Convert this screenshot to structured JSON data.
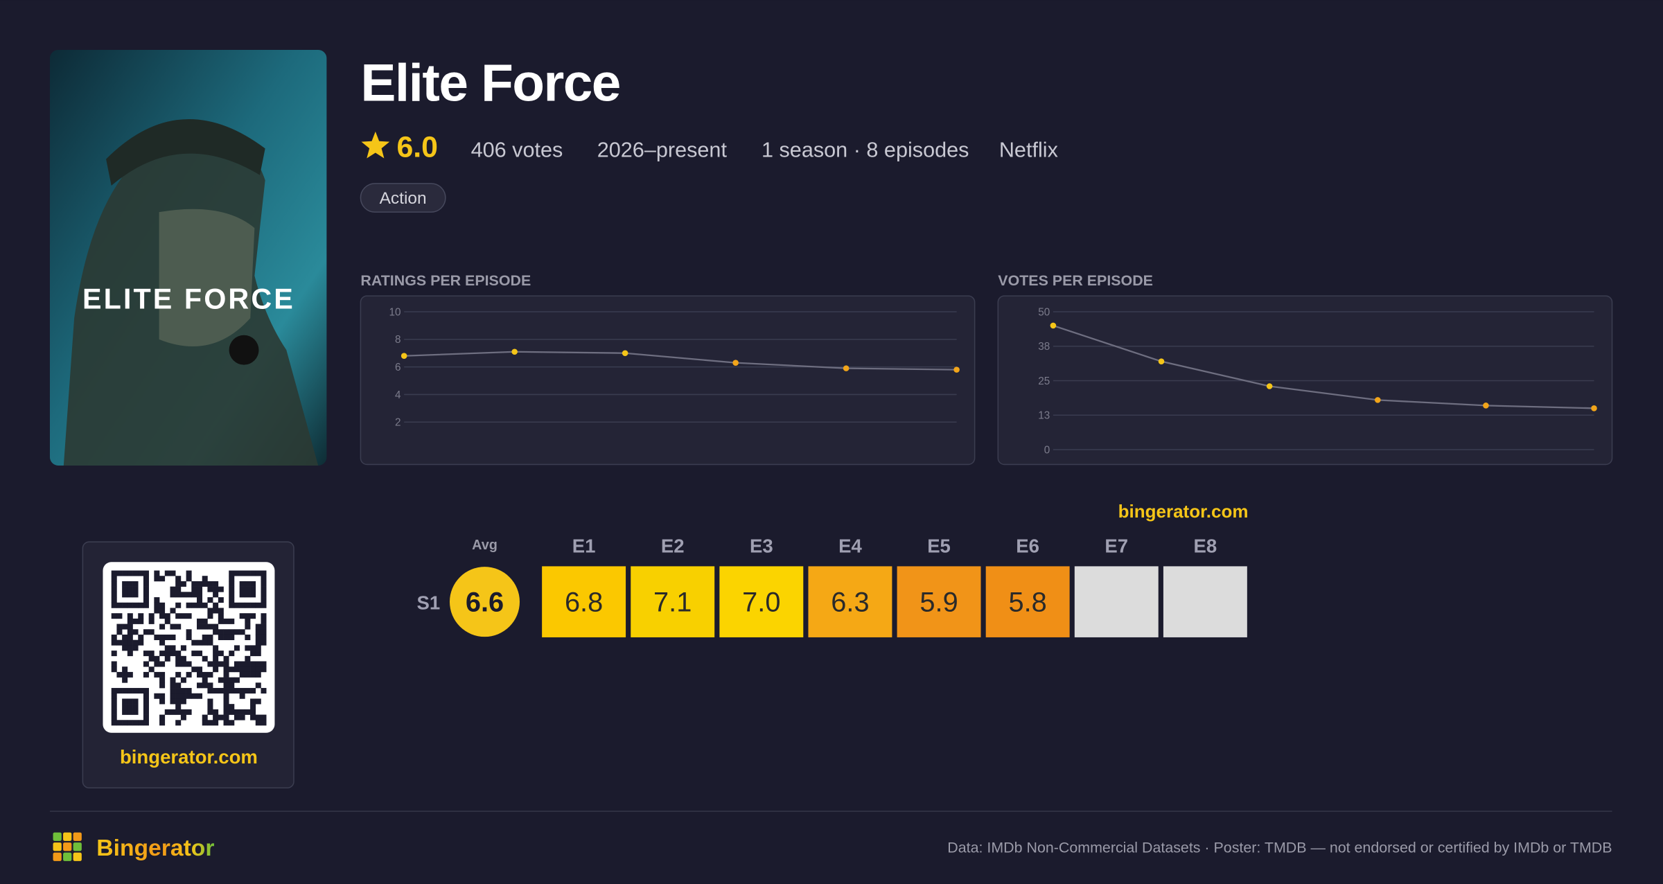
{
  "header": {
    "title": "Elite Force",
    "rating": "6.0",
    "votes": "406 votes",
    "years": "2026–present",
    "seasons": "1 season · 8 episodes",
    "network": "Netflix",
    "genres": [
      "Action"
    ]
  },
  "poster": {
    "title": "ELITE FORCE"
  },
  "qr": {
    "caption": "bingerator.com"
  },
  "chart_data": [
    {
      "type": "line",
      "title": "RATINGS PER EPISODE",
      "values": [
        6.8,
        7.1,
        7.0,
        6.3,
        5.9,
        5.8
      ],
      "marker_colors": [
        "#f5c518",
        "#f5c518",
        "#f5c518",
        "#f2a51a",
        "#f2a51a",
        "#f2a51a"
      ],
      "line_color": "#6e6e80",
      "ylim": [
        0,
        10
      ],
      "yticks": [
        2,
        4,
        6,
        8,
        10
      ],
      "grid": true
    },
    {
      "type": "line",
      "title": "VOTES PER EPISODE",
      "values": [
        45,
        32,
        23,
        18,
        16,
        15
      ],
      "marker_colors": [
        "#f5c518",
        "#f5c518",
        "#f5c518",
        "#f2a51a",
        "#f2a51a",
        "#f2a51a"
      ],
      "line_color": "#6e6e80",
      "ylim": [
        0,
        50
      ],
      "yticks": [
        0,
        12.5,
        25,
        37.5,
        50
      ],
      "yticks_labels": [
        "0",
        "13",
        "25",
        "38",
        "50"
      ],
      "grid": true
    },
    {
      "type": "heatmap",
      "site": "bingerator.com",
      "avg_label": "Avg",
      "rows": [
        "S1"
      ],
      "columns": [
        "E1",
        "E2",
        "E3",
        "E4",
        "E5",
        "E6",
        "E7",
        "E8"
      ],
      "avg": [
        6.6
      ],
      "values": [
        [
          6.8,
          7.1,
          7.0,
          6.3,
          5.9,
          5.8,
          null,
          null
        ]
      ],
      "value_labels": [
        [
          "6.8",
          "7.1",
          "7.0",
          "6.3",
          "5.9",
          "5.8",
          null,
          null
        ]
      ],
      "colors": [
        [
          "#fbc800",
          "#f8d000",
          "#fbd400",
          "#f5a815",
          "#f19418",
          "#f08f16",
          null,
          null
        ]
      ],
      "empty_color": "#dcdcdc",
      "avg_color": "#f5c518"
    }
  ],
  "footer": {
    "brand": "Bingerator",
    "credits": "Data: IMDb Non-Commercial Datasets · Poster: TMDB — not endorsed or certified by IMDb or TMDB"
  }
}
